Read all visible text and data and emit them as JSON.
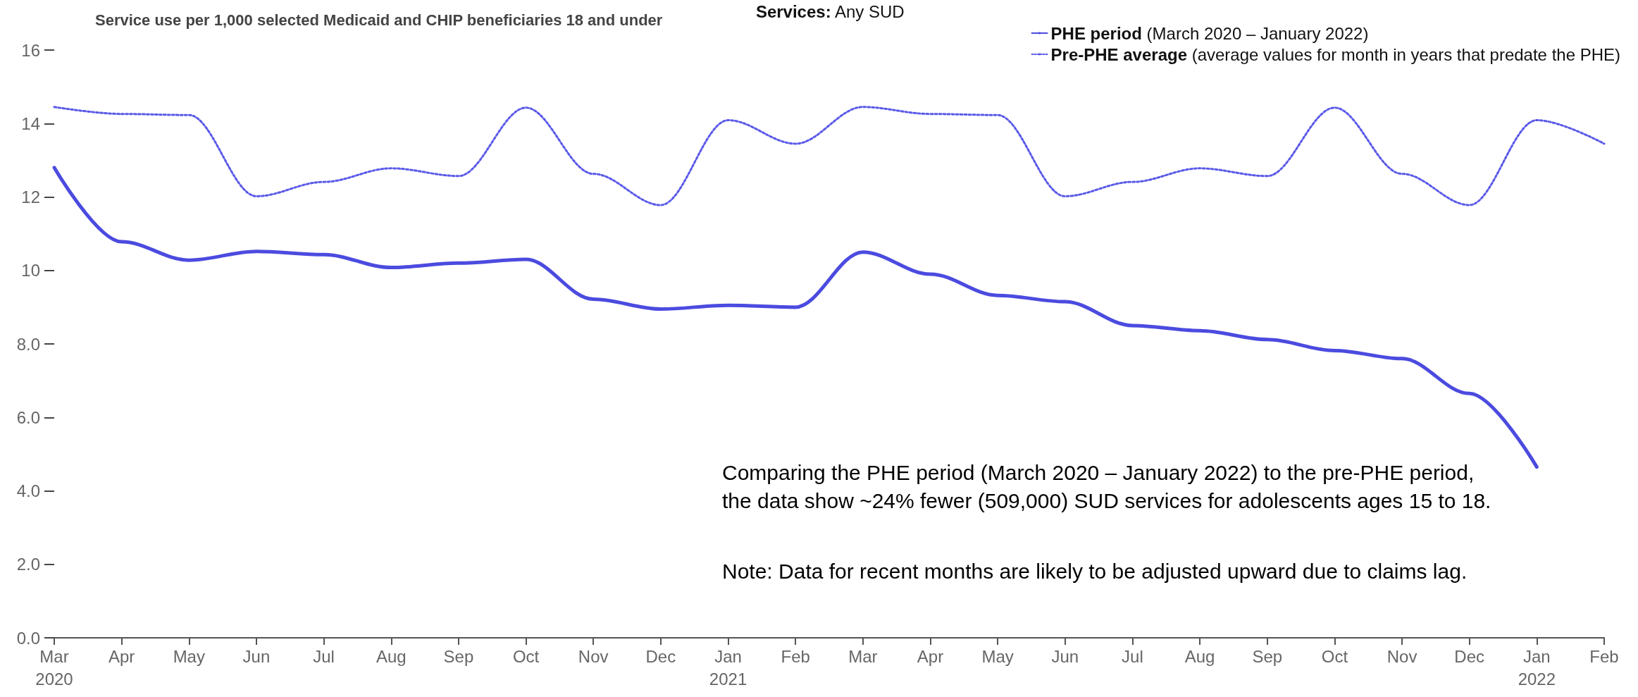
{
  "chart_data": {
    "type": "line",
    "title": "Service use per 1,000 selected Medicaid and CHIP beneficiaries 18 and under",
    "legend_title": "Services: Any SUD",
    "categories": [
      "Mar\n2020",
      "Apr",
      "May",
      "Jun",
      "Jul",
      "Aug",
      "Sep",
      "Oct",
      "Nov",
      "Dec",
      "Jan\n2021",
      "Feb",
      "Mar",
      "Apr",
      "May",
      "Jun",
      "Jul",
      "Aug",
      "Sep",
      "Oct",
      "Nov",
      "Dec",
      "Jan\n2022",
      "Feb"
    ],
    "series": [
      {
        "name": "PHE period (March 2020 – January 2022)",
        "color": "#4b4be0",
        "line_style": "solid",
        "values": [
          12.8,
          10.78,
          10.28,
          10.52,
          10.43,
          10.08,
          10.2,
          10.3,
          9.22,
          8.95,
          9.05,
          9.0,
          10.5,
          9.9,
          9.32,
          9.15,
          8.5,
          8.36,
          8.12,
          7.82,
          7.6,
          6.65,
          4.65,
          null
        ]
      },
      {
        "name": "Pre-PHE average (average values for month in years that predate the PHE)",
        "color": "#5a5ae8",
        "line_style": "dotted",
        "values": [
          14.45,
          14.26,
          14.23,
          12.02,
          12.41,
          12.78,
          12.57,
          14.43,
          12.63,
          11.78,
          14.09,
          13.45,
          14.45,
          14.26,
          14.23,
          12.02,
          12.41,
          12.78,
          12.57,
          14.43,
          12.63,
          11.78,
          14.09,
          13.45
        ]
      }
    ],
    "ylim": [
      0,
      16
    ],
    "yticks": [
      {
        "value": 0,
        "label": "0.0"
      },
      {
        "value": 2,
        "label": "2.0"
      },
      {
        "value": 4,
        "label": "4.0"
      },
      {
        "value": 6,
        "label": "6.0"
      },
      {
        "value": 8,
        "label": "8.0"
      },
      10,
      12,
      14,
      16
    ],
    "grid": false,
    "legend": "top right",
    "marker": "none",
    "annotations": [
      "Comparing the PHE period (March 2020 – January 2022) to the pre-PHE period, the data show ~24% fewer (509,000) SUD services for adolescents ages 15 to 18.",
      "Note: Data for recent months are likely to be adjusted upward due to claims lag."
    ]
  }
}
